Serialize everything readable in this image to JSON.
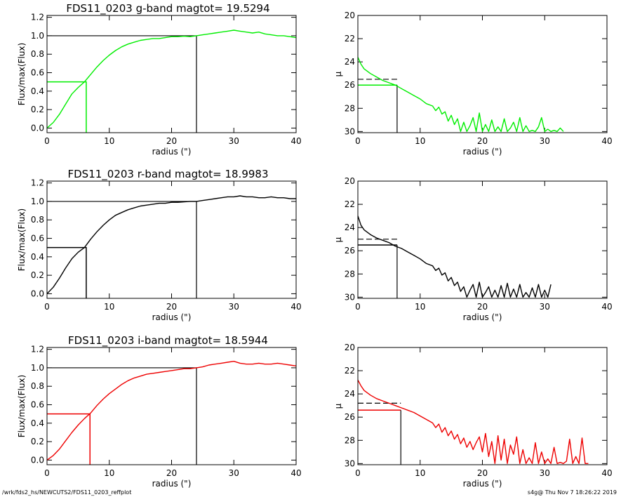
{
  "footer": {
    "path": "/wrk/fds2_hs/NEWCUTS2/FDS11_0203_reffplot",
    "stamp": "s4g@  Thu Nov  7 18:26:22 2019"
  },
  "chart_data": [
    {
      "type": "line",
      "title": "FDS11_0203 g-band  magtot=     19.5294",
      "xlabel": "radius (\")",
      "ylabel": "Flux/max(Flux)",
      "xlim": [
        0,
        40
      ],
      "ylim": [
        -0.05,
        1.22
      ],
      "xticks": [
        0,
        10,
        20,
        30,
        40
      ],
      "yticks": [
        "0.0",
        "0.2",
        "0.4",
        "0.6",
        "0.8",
        "1.0",
        "1.2"
      ],
      "color": "#00ee00",
      "series": [
        {
          "x": [
            0,
            1,
            2,
            3,
            4,
            5,
            6,
            7,
            8,
            9,
            10,
            11,
            12,
            13,
            14,
            15,
            16,
            17,
            18,
            19,
            20,
            21,
            22,
            23,
            24,
            25,
            26,
            27,
            28,
            29,
            30,
            31,
            32,
            33,
            34,
            35,
            36,
            37,
            38,
            39,
            40
          ],
          "y": [
            0.0,
            0.06,
            0.15,
            0.26,
            0.37,
            0.44,
            0.5,
            0.58,
            0.66,
            0.73,
            0.79,
            0.84,
            0.88,
            0.91,
            0.93,
            0.95,
            0.96,
            0.97,
            0.97,
            0.98,
            0.99,
            0.99,
            0.995,
            0.99,
            1.0,
            1.01,
            1.02,
            1.03,
            1.04,
            1.05,
            1.06,
            1.05,
            1.04,
            1.03,
            1.04,
            1.02,
            1.01,
            1.0,
            1.0,
            0.99,
            0.98
          ]
        }
      ],
      "reference_lines": {
        "half_radius": 6.3,
        "half_level": 0.5,
        "total_radius": 24.0,
        "total_level": 1.0
      }
    },
    {
      "type": "line",
      "xlabel": "radius (\")",
      "ylabel": "μ",
      "xlim": [
        0,
        40
      ],
      "ylim": [
        30.1,
        20
      ],
      "xticks": [
        0,
        10,
        20,
        30,
        40
      ],
      "yticks": [
        "20",
        "22",
        "24",
        "26",
        "28",
        "30"
      ],
      "color": "#00ee00",
      "series": [
        {
          "x": [
            0,
            0.5,
            1,
            2,
            3,
            4,
            5,
            6,
            7,
            8,
            9,
            10,
            11,
            12,
            12.5,
            13,
            13.5,
            14,
            14.5,
            15,
            15.5,
            16,
            16.5,
            17,
            17.5,
            18,
            18.5,
            19,
            19.5,
            20,
            20.5,
            21,
            21.5,
            22,
            22.5,
            23,
            23.5,
            24,
            24.5,
            25,
            25.5,
            26,
            26.5,
            27,
            27.5,
            28,
            28.5,
            29,
            29.5,
            30,
            30.5,
            31,
            31.5,
            32,
            32.5,
            33
          ],
          "y": [
            23.6,
            24.2,
            24.6,
            25.0,
            25.3,
            25.6,
            25.8,
            26.0,
            26.3,
            26.6,
            26.9,
            27.2,
            27.6,
            27.8,
            28.2,
            27.9,
            28.5,
            28.3,
            29.1,
            28.6,
            29.4,
            28.9,
            30.0,
            29.2,
            30.0,
            29.5,
            28.8,
            30.0,
            28.4,
            30.0,
            29.4,
            30.0,
            29.0,
            30.0,
            29.6,
            30.0,
            28.9,
            30.0,
            29.7,
            29.2,
            30.0,
            28.8,
            30.0,
            29.5,
            30.0,
            29.9,
            30.0,
            29.6,
            28.8,
            30.0,
            29.8,
            30.0,
            29.9,
            30.0,
            29.7,
            30.0
          ]
        }
      ],
      "reference_lines": {
        "half_radius": 6.3,
        "mu_solid": 26.0,
        "mu_dashed": 25.5
      }
    },
    {
      "type": "line",
      "title": "FDS11_0203 r-band  magtot=     18.9983",
      "xlabel": "radius (\")",
      "ylabel": "Flux/max(Flux)",
      "xlim": [
        0,
        40
      ],
      "ylim": [
        -0.05,
        1.22
      ],
      "xticks": [
        0,
        10,
        20,
        30,
        40
      ],
      "yticks": [
        "0.0",
        "0.2",
        "0.4",
        "0.6",
        "0.8",
        "1.0",
        "1.2"
      ],
      "color": "#000000",
      "series": [
        {
          "x": [
            0,
            1,
            2,
            3,
            4,
            5,
            6,
            7,
            8,
            9,
            10,
            11,
            12,
            13,
            14,
            15,
            16,
            17,
            18,
            19,
            20,
            21,
            22,
            23,
            24,
            25,
            26,
            27,
            28,
            29,
            30,
            31,
            32,
            33,
            34,
            35,
            36,
            37,
            38,
            39,
            40
          ],
          "y": [
            0.0,
            0.07,
            0.17,
            0.28,
            0.38,
            0.45,
            0.5,
            0.59,
            0.67,
            0.74,
            0.8,
            0.85,
            0.88,
            0.91,
            0.93,
            0.95,
            0.96,
            0.97,
            0.98,
            0.98,
            0.99,
            0.99,
            0.995,
            1.0,
            1.0,
            1.01,
            1.02,
            1.03,
            1.04,
            1.05,
            1.05,
            1.06,
            1.05,
            1.05,
            1.04,
            1.04,
            1.05,
            1.04,
            1.04,
            1.03,
            1.03
          ]
        }
      ],
      "reference_lines": {
        "half_radius": 6.3,
        "half_level": 0.5,
        "total_radius": 24.0,
        "total_level": 1.0
      }
    },
    {
      "type": "line",
      "xlabel": "radius (\")",
      "ylabel": "μ",
      "xlim": [
        0,
        40
      ],
      "ylim": [
        30.1,
        20
      ],
      "xticks": [
        0,
        10,
        20,
        30,
        40
      ],
      "yticks": [
        "20",
        "22",
        "24",
        "26",
        "28",
        "30"
      ],
      "color": "#000000",
      "series": [
        {
          "x": [
            0,
            0.5,
            1,
            2,
            3,
            4,
            5,
            6,
            7,
            8,
            9,
            10,
            11,
            12,
            12.5,
            13,
            13.5,
            14,
            14.5,
            15,
            15.5,
            16,
            16.5,
            17,
            17.5,
            18,
            18.5,
            19,
            19.5,
            20,
            20.5,
            21,
            21.5,
            22,
            22.5,
            23,
            23.5,
            24,
            24.5,
            25,
            25.5,
            26,
            26.5,
            27,
            27.5,
            28,
            28.5,
            29,
            29.5,
            30,
            30.5,
            31
          ],
          "y": [
            23.0,
            23.8,
            24.2,
            24.6,
            24.9,
            25.1,
            25.3,
            25.6,
            25.8,
            26.1,
            26.4,
            26.7,
            27.1,
            27.3,
            27.7,
            27.5,
            28.1,
            27.9,
            28.6,
            28.3,
            29.0,
            28.7,
            29.5,
            29.1,
            30.0,
            29.4,
            28.9,
            30.0,
            28.7,
            30.0,
            29.6,
            29.1,
            30.0,
            29.4,
            30.0,
            29.0,
            30.0,
            28.8,
            30.0,
            29.3,
            30.0,
            28.9,
            30.0,
            29.6,
            30.0,
            29.2,
            30.0,
            28.9,
            30.0,
            29.4,
            30.0,
            28.9
          ]
        }
      ],
      "reference_lines": {
        "half_radius": 6.3,
        "mu_solid": 25.5,
        "mu_dashed": 25.0
      }
    },
    {
      "type": "line",
      "title": "FDS11_0203 i-band  magtot=     18.5944",
      "xlabel": "radius (\")",
      "ylabel": "Flux/max(Flux)",
      "xlim": [
        0,
        40
      ],
      "ylim": [
        -0.05,
        1.22
      ],
      "xticks": [
        0,
        10,
        20,
        30,
        40
      ],
      "yticks": [
        "0.0",
        "0.2",
        "0.4",
        "0.6",
        "0.8",
        "1.0",
        "1.2"
      ],
      "color": "#ee0000",
      "series": [
        {
          "x": [
            0,
            1,
            2,
            3,
            4,
            5,
            6,
            7,
            8,
            9,
            10,
            11,
            12,
            13,
            14,
            15,
            16,
            17,
            18,
            19,
            20,
            21,
            22,
            23,
            24,
            25,
            26,
            27,
            28,
            29,
            30,
            31,
            32,
            33,
            34,
            35,
            36,
            37,
            38,
            39,
            40
          ],
          "y": [
            0.0,
            0.05,
            0.12,
            0.21,
            0.3,
            0.38,
            0.45,
            0.51,
            0.59,
            0.66,
            0.72,
            0.77,
            0.82,
            0.86,
            0.89,
            0.91,
            0.93,
            0.94,
            0.95,
            0.96,
            0.97,
            0.98,
            0.99,
            0.99,
            1.0,
            1.01,
            1.03,
            1.04,
            1.05,
            1.06,
            1.07,
            1.05,
            1.04,
            1.04,
            1.05,
            1.04,
            1.04,
            1.05,
            1.04,
            1.03,
            1.02
          ]
        }
      ],
      "reference_lines": {
        "half_radius": 6.9,
        "half_level": 0.5,
        "total_radius": 24.0,
        "total_level": 1.0
      }
    },
    {
      "type": "line",
      "xlabel": "radius (\")",
      "ylabel": "μ",
      "xlim": [
        0,
        40
      ],
      "ylim": [
        30.1,
        20
      ],
      "xticks": [
        0,
        10,
        20,
        30,
        40
      ],
      "yticks": [
        "20",
        "22",
        "24",
        "26",
        "28",
        "30"
      ],
      "color": "#ee0000",
      "series": [
        {
          "x": [
            0,
            0.5,
            1,
            2,
            3,
            4,
            5,
            6,
            7,
            8,
            9,
            10,
            11,
            12,
            12.5,
            13,
            13.5,
            14,
            14.5,
            15,
            15.5,
            16,
            16.5,
            17,
            17.5,
            18,
            18.5,
            19,
            19.5,
            20,
            20.5,
            21,
            21.5,
            22,
            22.5,
            23,
            23.5,
            24,
            24.5,
            25,
            25.5,
            26,
            26.5,
            27,
            27.5,
            28,
            28.5,
            29,
            29.5,
            30,
            30.5,
            31,
            31.5,
            32,
            32.5,
            33,
            33.5,
            34,
            34.5,
            35,
            35.5,
            36,
            36.5,
            37
          ],
          "y": [
            22.8,
            23.3,
            23.7,
            24.1,
            24.4,
            24.6,
            24.8,
            25.0,
            25.2,
            25.4,
            25.6,
            25.9,
            26.2,
            26.5,
            26.9,
            26.6,
            27.3,
            26.9,
            27.6,
            27.2,
            27.9,
            27.5,
            28.3,
            27.8,
            28.6,
            28.1,
            28.8,
            28.2,
            27.7,
            29.0,
            27.4,
            29.4,
            28.1,
            30.0,
            27.6,
            29.7,
            27.9,
            30.0,
            28.4,
            29.2,
            27.7,
            30.0,
            28.8,
            30.0,
            29.5,
            30.0,
            28.2,
            30.0,
            29.0,
            30.0,
            29.6,
            30.0,
            28.6,
            30.0,
            29.9,
            30.0,
            29.8,
            27.9,
            30.0,
            29.4,
            30.0,
            27.8,
            30.0,
            30.0
          ]
        }
      ],
      "reference_lines": {
        "half_radius": 6.9,
        "mu_solid": 25.4,
        "mu_dashed": 24.8
      }
    }
  ]
}
